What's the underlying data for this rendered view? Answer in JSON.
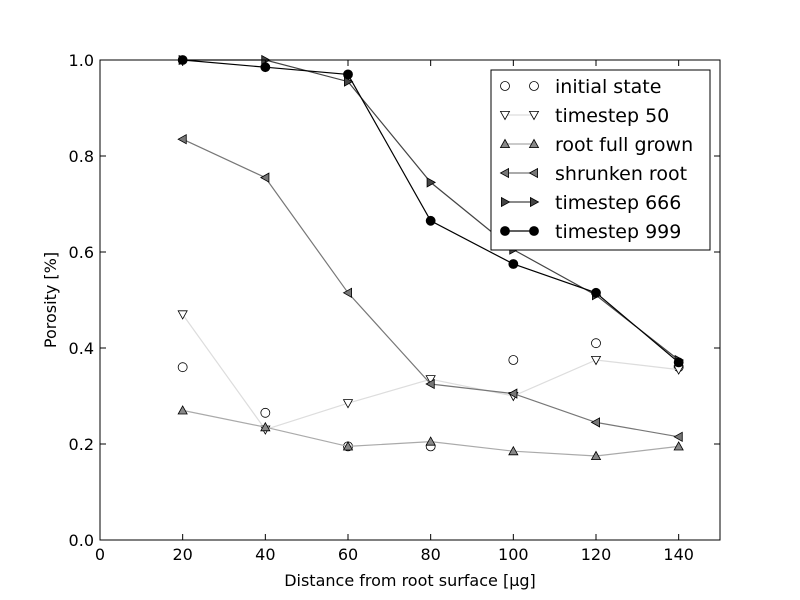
{
  "chart_data": {
    "type": "line",
    "title": "",
    "xlabel": "Distance from root surface [μg]",
    "ylabel": "Porosity [%]",
    "xlim": [
      0,
      150
    ],
    "ylim": [
      0.0,
      1.0
    ],
    "xticks": [
      0,
      20,
      40,
      60,
      80,
      100,
      120,
      140
    ],
    "yticks": [
      0.0,
      0.2,
      0.4,
      0.6,
      0.8,
      1.0
    ],
    "xtick_labels": [
      "0",
      "20",
      "40",
      "60",
      "80",
      "100",
      "120",
      "140"
    ],
    "ytick_labels": [
      "0.0",
      "0.2",
      "0.4",
      "0.6",
      "0.8",
      "1.0"
    ],
    "grid": false,
    "legend_position": "top-right",
    "x": [
      20,
      40,
      60,
      80,
      100,
      120,
      140
    ],
    "series": [
      {
        "name": "initial state",
        "marker": "circle",
        "line": false,
        "color": "#ffffff",
        "line_color": "#000000",
        "values": [
          0.36,
          0.265,
          0.195,
          0.195,
          0.375,
          0.41,
          0.36
        ]
      },
      {
        "name": "timestep 50",
        "marker": "triangle-down",
        "line": true,
        "color": "#ffffff",
        "line_color": "#dddddd",
        "values": [
          0.47,
          0.23,
          0.285,
          0.335,
          0.3,
          0.375,
          0.355
        ]
      },
      {
        "name": "root full grown",
        "marker": "triangle-up",
        "line": true,
        "color": "#888888",
        "line_color": "#aaaaaa",
        "values": [
          0.27,
          0.235,
          0.195,
          0.205,
          0.185,
          0.175,
          0.195
        ]
      },
      {
        "name": "shrunken root",
        "marker": "triangle-left",
        "line": true,
        "color": "#777777",
        "line_color": "#777777",
        "values": [
          0.835,
          0.755,
          0.515,
          0.325,
          0.305,
          0.245,
          0.215
        ]
      },
      {
        "name": "timestep 666",
        "marker": "triangle-right",
        "line": true,
        "color": "#444444",
        "line_color": "#444444",
        "values": [
          1.0,
          1.0,
          0.955,
          0.745,
          0.605,
          0.51,
          0.375
        ]
      },
      {
        "name": "timestep 999",
        "marker": "circle",
        "line": true,
        "color": "#000000",
        "line_color": "#000000",
        "values": [
          1.0,
          0.985,
          0.97,
          0.665,
          0.575,
          0.515,
          0.37
        ]
      }
    ]
  }
}
